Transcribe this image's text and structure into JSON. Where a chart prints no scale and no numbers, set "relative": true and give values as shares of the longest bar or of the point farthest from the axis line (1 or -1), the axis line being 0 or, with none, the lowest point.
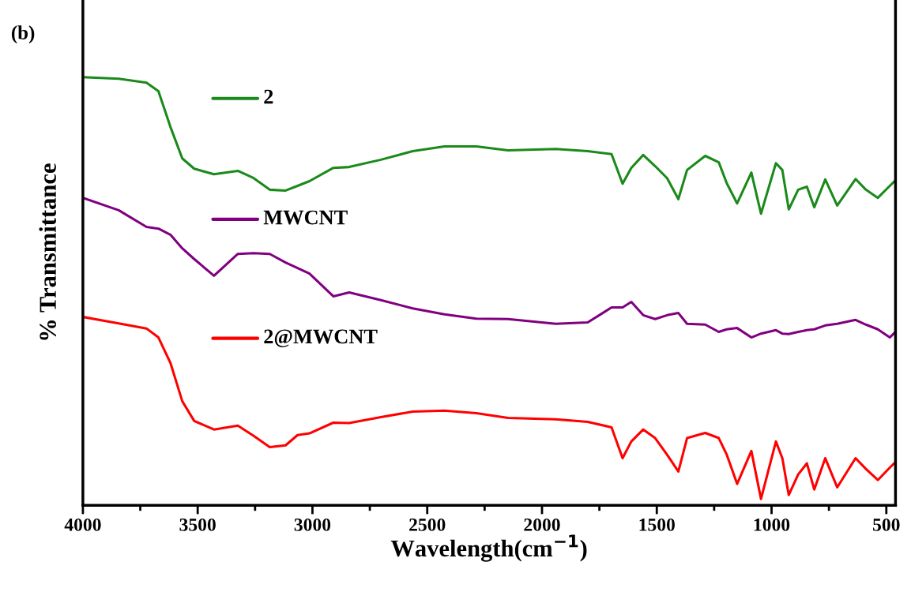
{
  "chart_data": {
    "type": "line",
    "title": "(b)",
    "xlabel": "Wavelength(cm$^{−1}$)",
    "ylabel": "% Transmittance",
    "relative": true,
    "x": [
      4000,
      3844,
      3723,
      3671,
      3619,
      3567,
      3515,
      3429,
      3325,
      3256,
      3186,
      3117,
      3065,
      3013,
      2909,
      2840,
      2702,
      2563,
      2425,
      2286,
      2148,
      1940,
      1801,
      1697,
      1649,
      1611,
      1559,
      1507,
      1455,
      1406,
      1368,
      1289,
      1230,
      1195,
      1150,
      1088,
      1046,
      981,
      953,
      925,
      884,
      846,
      814,
      766,
      714,
      634,
      589,
      537,
      485,
      460
    ],
    "xlim": [
      4000,
      460
    ],
    "xticks": [
      4000,
      {
        "value": 3750,
        "label": null
      },
      3500,
      {
        "value": 3250,
        "label": null
      },
      3000,
      {
        "value": 2750,
        "label": null
      },
      2500,
      {
        "value": 2250,
        "label": null
      },
      2000,
      {
        "value": 1750,
        "label": null
      },
      1500,
      {
        "value": 1250,
        "label": null
      },
      1000,
      {
        "value": 750,
        "label": null
      },
      500
    ],
    "line_style": "solid",
    "legend": "top left",
    "series": [
      {
        "name": "2",
        "color": "#1a8a1a",
        "values": [
          1.0,
          0.996,
          0.987,
          0.967,
          0.884,
          0.81,
          0.786,
          0.773,
          0.781,
          0.764,
          0.737,
          0.735,
          0.746,
          0.757,
          0.788,
          0.79,
          0.807,
          0.827,
          0.838,
          0.838,
          0.829,
          0.832,
          0.827,
          0.82,
          0.751,
          0.788,
          0.818,
          0.792,
          0.764,
          0.715,
          0.783,
          0.816,
          0.801,
          0.752,
          0.705,
          0.777,
          0.681,
          0.799,
          0.783,
          0.691,
          0.737,
          0.744,
          0.696,
          0.761,
          0.7,
          0.762,
          0.737,
          0.718,
          0.746,
          0.759
        ]
      },
      {
        "name": "MWCNT",
        "color": "#800080",
        "values": [
          0.718,
          0.689,
          0.65,
          0.646,
          0.632,
          0.6,
          0.575,
          0.536,
          0.587,
          0.589,
          0.587,
          0.567,
          0.554,
          0.541,
          0.488,
          0.497,
          0.479,
          0.46,
          0.446,
          0.436,
          0.435,
          0.424,
          0.427,
          0.462,
          0.462,
          0.475,
          0.444,
          0.435,
          0.444,
          0.449,
          0.424,
          0.422,
          0.405,
          0.411,
          0.414,
          0.392,
          0.401,
          0.409,
          0.401,
          0.4,
          0.405,
          0.409,
          0.411,
          0.42,
          0.424,
          0.433,
          0.422,
          0.411,
          0.392,
          0.405
        ]
      },
      {
        "name": "2@MWCNT",
        "color": "#ff0000",
        "values": [
          0.44,
          0.425,
          0.413,
          0.392,
          0.333,
          0.243,
          0.197,
          0.177,
          0.186,
          0.162,
          0.136,
          0.14,
          0.164,
          0.168,
          0.193,
          0.192,
          0.206,
          0.219,
          0.221,
          0.215,
          0.204,
          0.201,
          0.195,
          0.182,
          0.11,
          0.149,
          0.177,
          0.157,
          0.118,
          0.079,
          0.157,
          0.169,
          0.157,
          0.118,
          0.05,
          0.127,
          0.015,
          0.149,
          0.11,
          0.024,
          0.072,
          0.098,
          0.037,
          0.11,
          0.042,
          0.11,
          0.085,
          0.059,
          0.088,
          0.101
        ]
      }
    ]
  }
}
